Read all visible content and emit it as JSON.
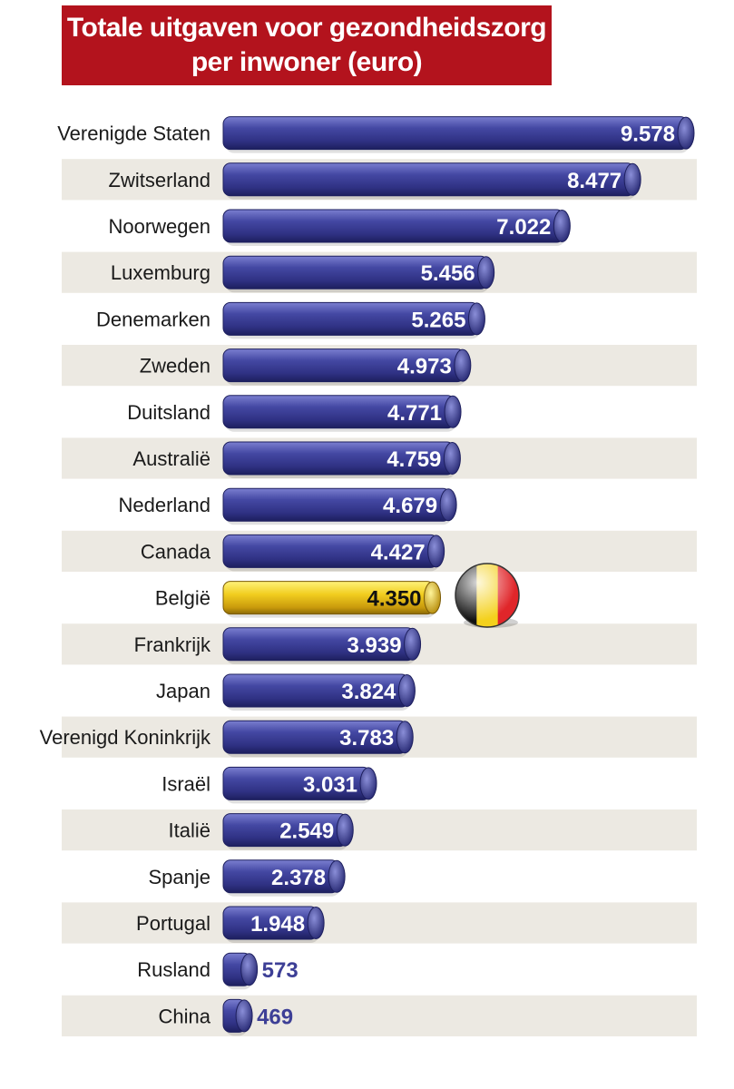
{
  "title_line1": "Totale uitgaven voor gezondheidszorg",
  "title_line2": "per inwoner (euro)",
  "colors": {
    "title_bg": "#b3131d",
    "bar": "#3d3f96",
    "bar_highlight": "#e6c21a",
    "stripe": "#ece9e2",
    "value_text": "#ffffff",
    "value_text_outside": "#3d3f96"
  },
  "chart_data": {
    "type": "bar",
    "orientation": "horizontal",
    "title": "Totale uitgaven voor gezondheidszorg per inwoner (euro)",
    "highlight": "België",
    "categories": [
      "Verenigde Staten",
      "Zwitserland",
      "Noorwegen",
      "Luxemburg",
      "Denemarken",
      "Zweden",
      "Duitsland",
      "Australië",
      "Nederland",
      "Canada",
      "België",
      "Frankrijk",
      "Japan",
      "Verenigd Koninkrijk",
      "Israël",
      "Italië",
      "Spanje",
      "Portugal",
      "Rusland",
      "China"
    ],
    "values": [
      9578,
      8477,
      7022,
      5456,
      5265,
      4973,
      4771,
      4759,
      4679,
      4427,
      4350,
      3939,
      3824,
      3783,
      3031,
      2549,
      2378,
      1948,
      573,
      469
    ],
    "value_labels": [
      "9.578",
      "8.477",
      "7.022",
      "5.456",
      "5.265",
      "4.973",
      "4.771",
      "4.759",
      "4.679",
      "4.427",
      "4.350",
      "3.939",
      "3.824",
      "3.783",
      "3.031",
      "2.549",
      "2.378",
      "1.948",
      "573",
      "469"
    ],
    "highlight_icon": "belgian-flag-ball-icon"
  }
}
